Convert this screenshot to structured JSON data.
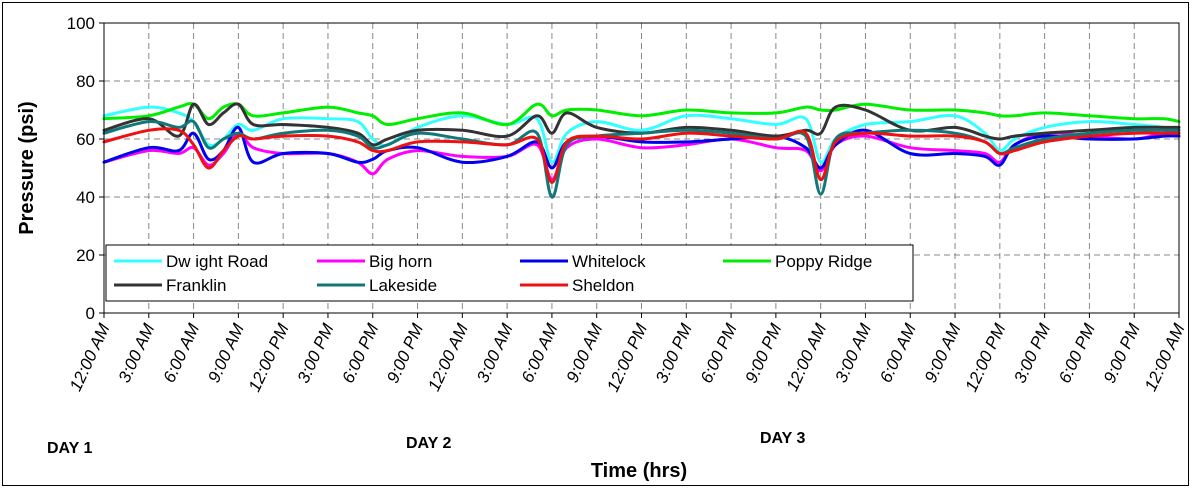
{
  "chart_data": {
    "type": "line",
    "title": "",
    "xlabel": "Time (hrs)",
    "ylabel": "Pressure (psi)",
    "ylim": [
      0,
      100
    ],
    "yticks": [
      "0",
      "20",
      "40",
      "60",
      "80",
      "100"
    ],
    "x_tick_labels": [
      "12:00 AM",
      "3:00 AM",
      "6:00 AM",
      "9:00 AM",
      "12:00 PM",
      "3:00 PM",
      "6:00 PM",
      "9:00 PM",
      "12:00 AM",
      "3:00 AM",
      "6:00 AM",
      "9:00 AM",
      "12:00 PM",
      "3:00 PM",
      "6:00 PM",
      "9:00 PM",
      "12:00 AM",
      "3:00 AM",
      "6:00 AM",
      "9:00 AM",
      "12:00 PM",
      "3:00 PM",
      "6:00 PM",
      "9:00 PM",
      "12:00 AM"
    ],
    "x_unit": "hours from start",
    "xlim": [
      0,
      72
    ],
    "day_labels": [
      "DAY 1",
      "DAY 2",
      "DAY 3"
    ],
    "grid": true,
    "legend_position": "bottom-left",
    "x_hours": [
      0,
      3,
      5,
      6,
      7,
      8,
      9,
      10,
      12,
      15,
      17,
      18,
      19,
      21,
      24,
      27,
      29,
      30,
      31,
      33,
      36,
      39,
      42,
      45,
      47,
      48,
      49,
      51,
      54,
      57,
      59,
      60,
      61,
      63,
      66,
      69,
      71,
      72
    ],
    "series": [
      {
        "name": "Dw ight Road",
        "color": "#33ffff",
        "values": [
          68,
          71,
          69,
          66,
          58,
          60,
          65,
          63,
          67,
          67,
          66,
          60,
          58,
          64,
          68,
          65,
          67,
          52,
          62,
          66,
          63,
          68,
          67,
          65,
          67,
          52,
          60,
          65,
          66,
          68,
          62,
          56,
          60,
          64,
          66,
          65,
          64,
          63
        ]
      },
      {
        "name": "Big horn",
        "color": "#ff00ff",
        "values": [
          52,
          56,
          55,
          57,
          51,
          55,
          62,
          57,
          55,
          55,
          52,
          48,
          53,
          56,
          54,
          54,
          58,
          46,
          57,
          60,
          57,
          58,
          60,
          57,
          56,
          49,
          58,
          61,
          57,
          56,
          55,
          52,
          58,
          62,
          61,
          60,
          62,
          62
        ]
      },
      {
        "name": "Whitelock",
        "color": "#0000ee",
        "values": [
          52,
          57,
          56,
          62,
          53,
          56,
          64,
          52,
          55,
          55,
          52,
          53,
          56,
          57,
          52,
          54,
          59,
          50,
          59,
          61,
          59,
          59,
          60,
          61,
          57,
          50,
          58,
          63,
          55,
          55,
          54,
          51,
          58,
          61,
          60,
          60,
          61,
          61
        ]
      },
      {
        "name": "Poppy Ridge",
        "color": "#00ee00",
        "values": [
          67,
          68,
          71,
          72,
          67,
          71,
          72,
          68,
          69,
          71,
          69,
          68,
          65,
          67,
          69,
          65,
          72,
          68,
          70,
          70,
          68,
          70,
          69,
          69,
          71,
          70,
          70,
          72,
          70,
          70,
          69,
          68,
          68,
          69,
          68,
          67,
          67,
          66
        ]
      },
      {
        "name": "Franklin",
        "color": "#333333",
        "values": [
          63,
          67,
          61,
          72,
          65,
          69,
          72,
          65,
          65,
          64,
          62,
          58,
          60,
          63,
          63,
          61,
          68,
          62,
          69,
          64,
          62,
          64,
          63,
          61,
          63,
          62,
          71,
          70,
          63,
          64,
          61,
          60,
          61,
          62,
          63,
          64,
          64,
          64
        ]
      },
      {
        "name": "Lakeside",
        "color": "#117777",
        "values": [
          62,
          66,
          64,
          66,
          57,
          60,
          62,
          60,
          62,
          63,
          61,
          57,
          58,
          62,
          60,
          58,
          62,
          40,
          58,
          61,
          62,
          63,
          62,
          60,
          61,
          41,
          60,
          62,
          63,
          62,
          59,
          55,
          57,
          60,
          62,
          63,
          63,
          63
        ]
      },
      {
        "name": "Sheldon",
        "color": "#ee1111",
        "values": [
          59,
          63,
          63,
          58,
          50,
          56,
          61,
          60,
          61,
          61,
          59,
          56,
          56,
          59,
          59,
          58,
          60,
          45,
          59,
          61,
          60,
          62,
          61,
          60,
          62,
          46,
          59,
          62,
          61,
          61,
          59,
          55,
          56,
          59,
          61,
          62,
          62,
          62
        ]
      }
    ]
  }
}
